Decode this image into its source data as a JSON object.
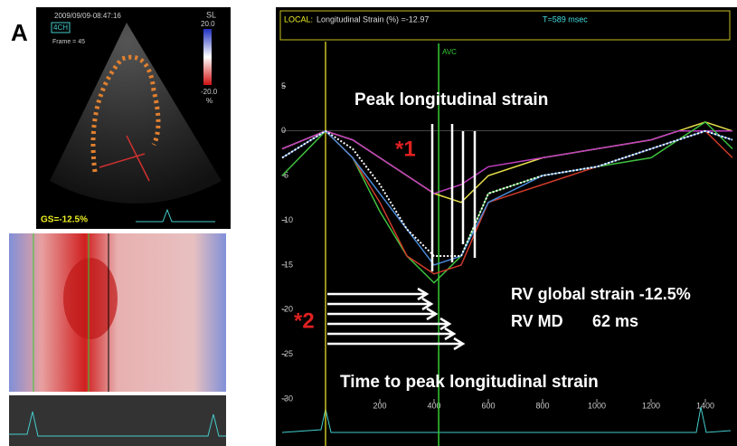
{
  "panel_label": "A",
  "echo": {
    "timestamp": "2009/09/09-08:47:16",
    "view": "4CH",
    "frame": "Frame = 45",
    "scale_title": "SL",
    "scale_max": "20.0",
    "scale_min": "-20.0",
    "scale_unit": "%",
    "gs": "GS=-12.5%"
  },
  "header": {
    "local": "LOCAL:",
    "strain": "Longitudinal Strain (%) =-12.97",
    "time": "T=589 msec"
  },
  "chart_data": {
    "type": "line",
    "x": [
      -160,
      0,
      100,
      200,
      300,
      400,
      500,
      600,
      800,
      1000,
      1200,
      1300,
      1400,
      1500
    ],
    "series": [
      {
        "color": "#e8e04a",
        "values": [
          -2,
          0,
          -1,
          -3,
          -5,
          -7,
          -8,
          -5,
          -3,
          -2,
          -1,
          0,
          1,
          0
        ]
      },
      {
        "color": "#c040c0",
        "values": [
          -2,
          0,
          -1,
          -3,
          -5,
          -7,
          -6,
          -4,
          -3,
          -2,
          -1,
          0,
          0,
          0
        ]
      },
      {
        "color": "#3fc040",
        "values": [
          -5,
          0,
          -3,
          -9,
          -14,
          -17,
          -14,
          -7,
          -5,
          -4,
          -3,
          -1,
          1,
          -2
        ]
      },
      {
        "color": "#d03a2a",
        "values": [
          -3,
          0,
          -3,
          -8,
          -14,
          -16,
          -15,
          -8,
          -6,
          -4,
          -2,
          -1,
          0,
          -3
        ]
      },
      {
        "color": "#4a8ad8",
        "values": [
          -3,
          0,
          -3,
          -7,
          -11,
          -15,
          -14,
          -8,
          -5,
          -4,
          -2,
          -1,
          0,
          -1
        ]
      },
      {
        "color": "#ffffff",
        "dashed": true,
        "values": [
          -3,
          0,
          -2,
          -6,
          -11,
          -14,
          -14,
          -7,
          -5,
          -4,
          -2,
          -1,
          0,
          -1
        ]
      }
    ],
    "xlim": [
      -160,
      1500
    ],
    "ylim": [
      -30,
      10
    ],
    "xticks": [
      200,
      400,
      600,
      800,
      1000,
      1200,
      1400
    ],
    "yticks": [
      5,
      0,
      -5,
      -10,
      -15,
      -20,
      -25,
      -30
    ],
    "avc": {
      "label": "AVC",
      "x": 417
    },
    "annotations": {
      "peak": "Peak longitudinal strain",
      "star1": "*1",
      "star2": "*2",
      "global": "RV global strain -12.5%",
      "md_label": "RV MD",
      "md_value": "62 ms",
      "time_to_peak": "Time to peak longitudinal strain"
    }
  }
}
